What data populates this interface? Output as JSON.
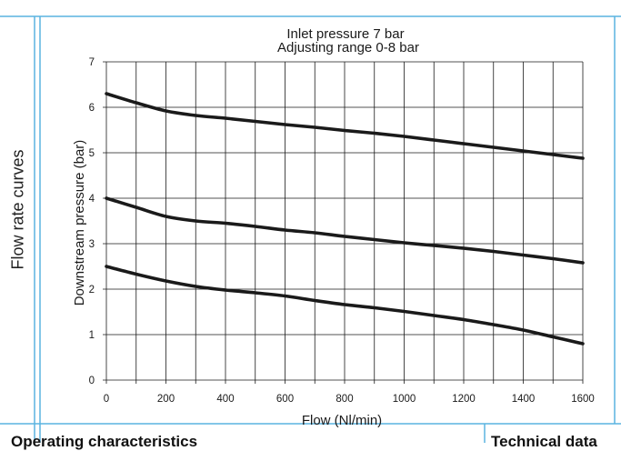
{
  "side_label": "Flow rate curves",
  "bottom_left_heading": "Operating characteristics",
  "bottom_right_heading": "Technical data",
  "chart_data": {
    "type": "line",
    "title": "Inlet pressure 7 bar",
    "subtitle": "Adjusting range 0-8 bar",
    "xlabel": "Flow (Nl/min)",
    "ylabel": "Downstream pressure (bar)",
    "xlim": [
      0,
      1600
    ],
    "ylim": [
      0,
      7
    ],
    "x_ticks": [
      0,
      200,
      400,
      600,
      800,
      1000,
      1200,
      1400,
      1600
    ],
    "y_ticks": [
      0,
      1,
      2,
      3,
      4,
      5,
      6,
      7
    ],
    "x_grid_step": 100,
    "y_grid_step": 1,
    "grid": true,
    "series": [
      {
        "name": "curve-6.3-bar",
        "x": [
          0,
          100,
          200,
          300,
          400,
          500,
          600,
          700,
          800,
          900,
          1000,
          1100,
          1200,
          1300,
          1400,
          1500,
          1600
        ],
        "y": [
          6.3,
          6.1,
          5.92,
          5.82,
          5.76,
          5.69,
          5.62,
          5.56,
          5.49,
          5.43,
          5.36,
          5.28,
          5.2,
          5.12,
          5.04,
          4.96,
          4.88
        ]
      },
      {
        "name": "curve-4.0-bar",
        "x": [
          0,
          100,
          200,
          300,
          400,
          500,
          600,
          700,
          800,
          900,
          1000,
          1100,
          1200,
          1300,
          1400,
          1500,
          1600
        ],
        "y": [
          4.0,
          3.8,
          3.6,
          3.5,
          3.45,
          3.38,
          3.3,
          3.24,
          3.16,
          3.09,
          3.02,
          2.96,
          2.9,
          2.83,
          2.75,
          2.67,
          2.58
        ]
      },
      {
        "name": "curve-2.5-bar",
        "x": [
          0,
          100,
          200,
          300,
          400,
          500,
          600,
          700,
          800,
          900,
          1000,
          1100,
          1200,
          1300,
          1400,
          1500,
          1600
        ],
        "y": [
          2.5,
          2.33,
          2.18,
          2.06,
          1.98,
          1.92,
          1.85,
          1.75,
          1.66,
          1.59,
          1.51,
          1.42,
          1.33,
          1.22,
          1.1,
          0.95,
          0.8
        ]
      }
    ]
  },
  "colors": {
    "frame": "#5ab4e0",
    "grid": "#1a1a1a",
    "curve": "#1a1a1a"
  }
}
